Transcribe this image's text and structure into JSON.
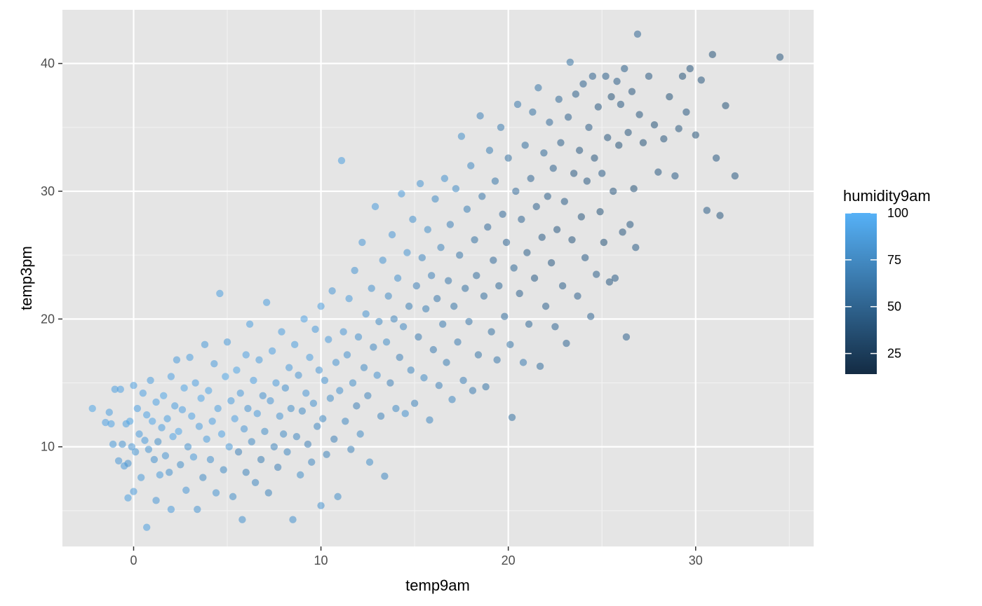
{
  "chart_data": {
    "type": "scatter",
    "xlabel": "temp9am",
    "ylabel": "temp3pm",
    "xlim": [
      -3.8,
      36.3
    ],
    "ylim": [
      2.2,
      44.2
    ],
    "x_ticks": [
      0,
      10,
      20,
      30
    ],
    "y_ticks": [
      10,
      20,
      30,
      40
    ],
    "x_tick_labels": [
      "0",
      "10",
      "20",
      "30"
    ],
    "y_tick_labels": [
      "10",
      "20",
      "30",
      "40"
    ],
    "grid": true,
    "panel_background": "#e5e5e5",
    "point_alpha": 0.55,
    "color_scale": {
      "title": "humidity9am",
      "min": 14,
      "max": 100,
      "low_color": "#132b43",
      "high_color": "#56b1f7",
      "breaks": [
        25,
        50,
        75,
        100
      ],
      "break_labels": [
        "25",
        "50",
        "75",
        "100"
      ],
      "legend_position": "right"
    },
    "points": [
      [
        -2.2,
        13.0,
        92
      ],
      [
        -1.5,
        11.9,
        90
      ],
      [
        -1.3,
        12.7,
        88
      ],
      [
        -1.2,
        11.8,
        91
      ],
      [
        -1.1,
        10.2,
        85
      ],
      [
        -1.0,
        14.5,
        88
      ],
      [
        -0.8,
        8.9,
        84
      ],
      [
        -0.7,
        14.5,
        90
      ],
      [
        -0.6,
        10.2,
        82
      ],
      [
        -0.5,
        8.5,
        86
      ],
      [
        -0.4,
        11.8,
        89
      ],
      [
        -0.3,
        8.7,
        80
      ],
      [
        -0.2,
        12.0,
        92
      ],
      [
        -0.1,
        10.0,
        84
      ],
      [
        0.0,
        14.8,
        88
      ],
      [
        0.0,
        6.5,
        86
      ],
      [
        0.1,
        9.6,
        83
      ],
      [
        0.2,
        13.0,
        90
      ],
      [
        0.3,
        11.0,
        87
      ],
      [
        0.4,
        7.6,
        85
      ],
      [
        -0.3,
        6.0,
        89
      ],
      [
        0.5,
        14.2,
        90
      ],
      [
        0.6,
        10.5,
        86
      ],
      [
        0.7,
        12.5,
        91
      ],
      [
        0.7,
        3.7,
        88
      ],
      [
        0.8,
        9.8,
        82
      ],
      [
        0.9,
        15.2,
        88
      ],
      [
        1.0,
        12.0,
        93
      ],
      [
        1.1,
        9.0,
        80
      ],
      [
        1.2,
        5.8,
        84
      ],
      [
        1.2,
        13.5,
        91
      ],
      [
        1.3,
        10.4,
        78
      ],
      [
        1.4,
        7.8,
        85
      ],
      [
        1.5,
        11.5,
        88
      ],
      [
        1.6,
        14.0,
        92
      ],
      [
        1.7,
        9.3,
        82
      ],
      [
        1.8,
        12.2,
        89
      ],
      [
        1.9,
        8.0,
        80
      ],
      [
        2.0,
        15.5,
        90
      ],
      [
        2.0,
        5.1,
        86
      ],
      [
        2.1,
        10.8,
        91
      ],
      [
        2.2,
        13.2,
        88
      ],
      [
        2.3,
        16.8,
        86
      ],
      [
        2.4,
        11.2,
        93
      ],
      [
        2.5,
        8.6,
        78
      ],
      [
        2.6,
        12.9,
        90
      ],
      [
        2.7,
        14.6,
        92
      ],
      [
        2.8,
        6.6,
        84
      ],
      [
        2.9,
        10.0,
        80
      ],
      [
        3.0,
        17.0,
        88
      ],
      [
        3.1,
        12.4,
        91
      ],
      [
        3.2,
        9.2,
        85
      ],
      [
        3.3,
        15.0,
        90
      ],
      [
        3.4,
        5.1,
        82
      ],
      [
        3.5,
        11.6,
        88
      ],
      [
        3.6,
        13.8,
        93
      ],
      [
        3.7,
        7.6,
        76
      ],
      [
        3.8,
        18.0,
        85
      ],
      [
        3.9,
        10.6,
        88
      ],
      [
        4.0,
        14.4,
        92
      ],
      [
        4.1,
        9.0,
        80
      ],
      [
        4.2,
        12.0,
        90
      ],
      [
        4.3,
        16.5,
        87
      ],
      [
        4.4,
        6.4,
        82
      ],
      [
        4.5,
        13.0,
        89
      ],
      [
        4.6,
        22.0,
        88
      ],
      [
        4.7,
        11.0,
        91
      ],
      [
        4.8,
        8.2,
        76
      ],
      [
        4.9,
        15.5,
        92
      ],
      [
        5.0,
        18.2,
        85
      ],
      [
        5.1,
        10.0,
        85
      ],
      [
        5.2,
        13.6,
        88
      ],
      [
        5.3,
        6.1,
        78
      ],
      [
        5.4,
        12.2,
        90
      ],
      [
        5.5,
        16.0,
        92
      ],
      [
        5.6,
        9.6,
        70
      ],
      [
        5.7,
        14.2,
        86
      ],
      [
        5.8,
        4.3,
        80
      ],
      [
        5.9,
        11.4,
        84
      ],
      [
        6.0,
        17.2,
        90
      ],
      [
        6.0,
        8.0,
        72
      ],
      [
        6.1,
        13.0,
        82
      ],
      [
        6.2,
        19.6,
        88
      ],
      [
        6.3,
        10.4,
        76
      ],
      [
        6.4,
        15.2,
        90
      ],
      [
        6.5,
        7.2,
        74
      ],
      [
        6.6,
        12.6,
        86
      ],
      [
        6.7,
        16.8,
        88
      ],
      [
        6.8,
        9.0,
        68
      ],
      [
        6.9,
        14.0,
        80
      ],
      [
        7.0,
        11.2,
        78
      ],
      [
        7.1,
        21.3,
        88
      ],
      [
        7.2,
        6.4,
        72
      ],
      [
        7.3,
        13.6,
        84
      ],
      [
        7.4,
        17.5,
        90
      ],
      [
        7.5,
        10.0,
        72
      ],
      [
        7.6,
        15.0,
        86
      ],
      [
        7.7,
        8.4,
        70
      ],
      [
        7.8,
        12.4,
        82
      ],
      [
        7.9,
        19.0,
        88
      ],
      [
        8.0,
        11.0,
        76
      ],
      [
        8.1,
        14.6,
        80
      ],
      [
        8.2,
        9.6,
        74
      ],
      [
        8.3,
        16.2,
        86
      ],
      [
        8.4,
        13.0,
        78
      ],
      [
        8.5,
        4.3,
        80
      ],
      [
        8.6,
        18.0,
        88
      ],
      [
        8.7,
        10.8,
        74
      ],
      [
        8.8,
        15.6,
        82
      ],
      [
        8.9,
        7.8,
        78
      ],
      [
        9.0,
        12.8,
        76
      ],
      [
        9.1,
        20.0,
        90
      ],
      [
        9.2,
        14.2,
        84
      ],
      [
        9.3,
        10.2,
        70
      ],
      [
        9.4,
        17.0,
        88
      ],
      [
        9.5,
        8.8,
        74
      ],
      [
        9.6,
        13.4,
        80
      ],
      [
        9.7,
        19.2,
        86
      ],
      [
        9.8,
        11.6,
        74
      ],
      [
        9.9,
        16.0,
        84
      ],
      [
        10.0,
        5.4,
        80
      ],
      [
        10.0,
        21.0,
        88
      ],
      [
        10.1,
        12.2,
        76
      ],
      [
        10.2,
        15.2,
        82
      ],
      [
        10.3,
        9.4,
        72
      ],
      [
        10.4,
        18.4,
        86
      ],
      [
        10.5,
        13.8,
        78
      ],
      [
        10.6,
        22.2,
        84
      ],
      [
        10.7,
        10.6,
        70
      ],
      [
        10.8,
        16.6,
        82
      ],
      [
        10.9,
        6.1,
        78
      ],
      [
        11.0,
        14.4,
        80
      ],
      [
        11.1,
        32.4,
        88
      ],
      [
        11.2,
        19.0,
        84
      ],
      [
        11.3,
        12.0,
        74
      ],
      [
        11.4,
        17.2,
        80
      ],
      [
        11.5,
        21.6,
        86
      ],
      [
        11.6,
        9.8,
        72
      ],
      [
        11.7,
        15.0,
        78
      ],
      [
        11.8,
        23.8,
        82
      ],
      [
        11.9,
        13.2,
        70
      ],
      [
        12.0,
        18.6,
        80
      ],
      [
        12.1,
        11.0,
        76
      ],
      [
        12.2,
        26.0,
        84
      ],
      [
        12.3,
        16.2,
        76
      ],
      [
        12.4,
        20.4,
        82
      ],
      [
        12.5,
        14.0,
        72
      ],
      [
        12.6,
        8.8,
        78
      ],
      [
        12.7,
        22.4,
        80
      ],
      [
        12.8,
        17.8,
        74
      ],
      [
        12.9,
        28.8,
        86
      ],
      [
        13.0,
        15.6,
        80
      ],
      [
        13.1,
        19.8,
        76
      ],
      [
        13.2,
        12.4,
        72
      ],
      [
        13.3,
        24.6,
        82
      ],
      [
        13.4,
        7.7,
        74
      ],
      [
        13.5,
        18.2,
        78
      ],
      [
        13.6,
        21.8,
        76
      ],
      [
        13.7,
        15.0,
        70
      ],
      [
        13.8,
        26.6,
        84
      ],
      [
        13.9,
        20.0,
        72
      ],
      [
        14.0,
        13.0,
        76
      ],
      [
        14.1,
        23.2,
        80
      ],
      [
        14.2,
        17.0,
        70
      ],
      [
        14.3,
        29.8,
        86
      ],
      [
        14.4,
        19.4,
        74
      ],
      [
        14.5,
        12.6,
        80
      ],
      [
        14.6,
        25.2,
        82
      ],
      [
        14.7,
        21.0,
        68
      ],
      [
        14.8,
        16.0,
        74
      ],
      [
        14.9,
        27.8,
        80
      ],
      [
        15.0,
        13.4,
        72
      ],
      [
        15.1,
        22.6,
        70
      ],
      [
        15.2,
        18.6,
        66
      ],
      [
        15.3,
        30.6,
        82
      ],
      [
        15.4,
        24.8,
        74
      ],
      [
        15.5,
        15.4,
        76
      ],
      [
        15.6,
        20.8,
        68
      ],
      [
        15.7,
        27.0,
        78
      ],
      [
        15.8,
        12.1,
        74
      ],
      [
        15.9,
        23.4,
        70
      ],
      [
        16.0,
        17.6,
        66
      ],
      [
        16.1,
        29.4,
        76
      ],
      [
        16.2,
        21.6,
        64
      ],
      [
        16.3,
        14.8,
        70
      ],
      [
        16.4,
        25.6,
        72
      ],
      [
        16.5,
        19.6,
        66
      ],
      [
        16.6,
        31.0,
        80
      ],
      [
        16.7,
        16.6,
        68
      ],
      [
        16.8,
        23.0,
        64
      ],
      [
        16.9,
        27.4,
        70
      ],
      [
        17.0,
        13.7,
        74
      ],
      [
        17.1,
        21.0,
        62
      ],
      [
        17.2,
        30.2,
        76
      ],
      [
        17.3,
        18.2,
        66
      ],
      [
        17.4,
        25.0,
        62
      ],
      [
        17.5,
        34.3,
        78
      ],
      [
        17.6,
        15.2,
        70
      ],
      [
        17.7,
        22.4,
        60
      ],
      [
        17.8,
        28.6,
        68
      ],
      [
        17.9,
        19.8,
        64
      ],
      [
        18.0,
        32.0,
        74
      ],
      [
        18.1,
        14.4,
        66
      ],
      [
        18.2,
        26.2,
        60
      ],
      [
        18.3,
        23.4,
        58
      ],
      [
        18.4,
        17.2,
        62
      ],
      [
        18.5,
        35.9,
        70
      ],
      [
        18.6,
        29.6,
        64
      ],
      [
        18.7,
        21.8,
        58
      ],
      [
        18.8,
        14.7,
        62
      ],
      [
        18.9,
        27.2,
        56
      ],
      [
        19.0,
        33.2,
        68
      ],
      [
        19.1,
        19.0,
        60
      ],
      [
        19.2,
        24.6,
        56
      ],
      [
        19.3,
        30.8,
        62
      ],
      [
        19.4,
        16.8,
        64
      ],
      [
        19.5,
        22.6,
        54
      ],
      [
        19.6,
        35.0,
        66
      ],
      [
        19.7,
        28.2,
        56
      ],
      [
        19.8,
        20.2,
        58
      ],
      [
        19.9,
        26.0,
        52
      ],
      [
        20.0,
        32.6,
        60
      ],
      [
        20.1,
        18.0,
        62
      ],
      [
        20.2,
        12.3,
        60
      ],
      [
        20.3,
        24.0,
        54
      ],
      [
        20.4,
        30.0,
        56
      ],
      [
        20.5,
        36.8,
        64
      ],
      [
        20.6,
        22.0,
        50
      ],
      [
        20.7,
        27.8,
        52
      ],
      [
        20.8,
        16.6,
        66
      ],
      [
        20.9,
        33.6,
        58
      ],
      [
        21.0,
        25.2,
        48
      ],
      [
        21.1,
        19.6,
        54
      ],
      [
        21.2,
        31.0,
        52
      ],
      [
        21.3,
        36.2,
        60
      ],
      [
        21.4,
        23.2,
        46
      ],
      [
        21.5,
        28.8,
        50
      ],
      [
        21.6,
        38.1,
        62
      ],
      [
        21.7,
        16.3,
        58
      ],
      [
        21.8,
        26.4,
        46
      ],
      [
        21.9,
        33.0,
        54
      ],
      [
        22.0,
        21.0,
        50
      ],
      [
        22.1,
        29.6,
        48
      ],
      [
        22.2,
        35.4,
        56
      ],
      [
        22.3,
        24.4,
        44
      ],
      [
        22.4,
        31.8,
        50
      ],
      [
        22.5,
        19.4,
        52
      ],
      [
        22.6,
        27.0,
        44
      ],
      [
        22.7,
        37.2,
        54
      ],
      [
        22.8,
        33.8,
        48
      ],
      [
        22.9,
        22.6,
        48
      ],
      [
        23.0,
        29.2,
        46
      ],
      [
        23.1,
        18.1,
        52
      ],
      [
        23.2,
        35.8,
        50
      ],
      [
        23.3,
        40.1,
        60
      ],
      [
        23.4,
        26.2,
        42
      ],
      [
        23.5,
        31.4,
        44
      ],
      [
        23.6,
        37.6,
        48
      ],
      [
        23.7,
        21.8,
        50
      ],
      [
        23.8,
        33.2,
        44
      ],
      [
        23.9,
        28.0,
        42
      ],
      [
        24.0,
        38.4,
        50
      ],
      [
        24.1,
        24.8,
        46
      ],
      [
        24.2,
        30.8,
        44
      ],
      [
        24.3,
        35.0,
        46
      ],
      [
        24.4,
        20.2,
        52
      ],
      [
        24.5,
        39.0,
        50
      ],
      [
        24.6,
        32.6,
        42
      ],
      [
        24.7,
        23.5,
        48
      ],
      [
        24.8,
        36.6,
        44
      ],
      [
        24.9,
        28.4,
        40
      ],
      [
        25.0,
        31.4,
        46
      ],
      [
        25.1,
        26.0,
        40
      ],
      [
        25.2,
        39.0,
        48
      ],
      [
        25.3,
        34.2,
        42
      ],
      [
        25.4,
        22.9,
        44
      ],
      [
        25.5,
        37.4,
        40
      ],
      [
        25.6,
        30.0,
        42
      ],
      [
        25.7,
        23.2,
        46
      ],
      [
        25.8,
        38.6,
        46
      ],
      [
        25.9,
        33.6,
        40
      ],
      [
        26.0,
        36.8,
        44
      ],
      [
        26.1,
        26.8,
        42
      ],
      [
        26.2,
        39.6,
        48
      ],
      [
        26.3,
        18.6,
        50
      ],
      [
        26.4,
        34.6,
        42
      ],
      [
        26.5,
        27.4,
        44
      ],
      [
        26.6,
        37.8,
        42
      ],
      [
        26.7,
        30.2,
        40
      ],
      [
        26.8,
        25.6,
        46
      ],
      [
        26.9,
        42.3,
        52
      ],
      [
        27.0,
        36.0,
        42
      ],
      [
        27.2,
        33.8,
        40
      ],
      [
        27.5,
        39.0,
        44
      ],
      [
        27.8,
        35.2,
        40
      ],
      [
        28.0,
        31.5,
        44
      ],
      [
        28.3,
        34.1,
        42
      ],
      [
        28.6,
        37.4,
        40
      ],
      [
        28.9,
        31.2,
        46
      ],
      [
        29.1,
        34.9,
        42
      ],
      [
        29.3,
        39.0,
        40
      ],
      [
        29.5,
        36.2,
        44
      ],
      [
        29.7,
        39.6,
        42
      ],
      [
        30.0,
        34.4,
        40
      ],
      [
        30.3,
        38.7,
        42
      ],
      [
        30.6,
        28.5,
        46
      ],
      [
        30.9,
        40.7,
        40
      ],
      [
        31.1,
        32.6,
        44
      ],
      [
        31.3,
        28.1,
        42
      ],
      [
        31.6,
        36.7,
        40
      ],
      [
        32.1,
        31.2,
        44
      ],
      [
        34.5,
        40.5,
        42
      ]
    ]
  }
}
